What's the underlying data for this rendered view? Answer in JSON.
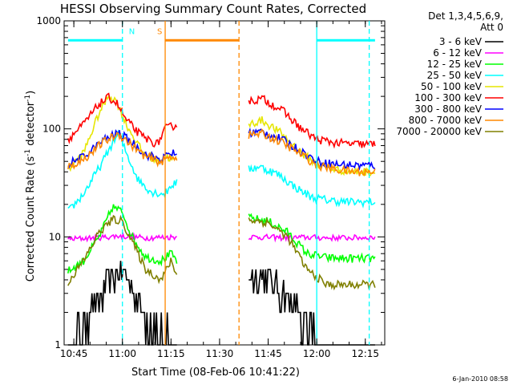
{
  "chart_data": {
    "type": "line",
    "title": "HESSI Observing Summary Count Rates, Corrected",
    "xlabel": "Start Time (08-Feb-06 10:41:22)",
    "ylabel_main": "Corrected Count Rate (s",
    "ylabel_sup1": "-1",
    "ylabel_mid": " detector",
    "ylabel_sup2": "-1",
    "ylabel_end": ")",
    "ylabel": "Corrected Count Rate (s-1 detector-1)",
    "yscale": "log",
    "ylim": [
      1,
      1000
    ],
    "xlim_minutes": [
      10.7,
      12.35
    ],
    "x_ticks": [
      {
        "value": 10.75,
        "label": "10:45"
      },
      {
        "value": 11.0,
        "label": "11:00"
      },
      {
        "value": 11.25,
        "label": "11:15"
      },
      {
        "value": 11.5,
        "label": "11:30"
      },
      {
        "value": 11.75,
        "label": "11:45"
      },
      {
        "value": 12.0,
        "label": "12:00"
      },
      {
        "value": 12.25,
        "label": "12:15"
      }
    ],
    "y_ticks": [
      {
        "value": 1,
        "label": "1"
      },
      {
        "value": 10,
        "label": "10"
      },
      {
        "value": 100,
        "label": "100"
      },
      {
        "value": 1000,
        "label": "1000"
      }
    ],
    "legend": {
      "placement": "right",
      "header1": "Det 1,3,4,5,6,9,",
      "header2": "Att 0"
    },
    "data_gap": [
      11.33,
      11.61
    ],
    "series": [
      {
        "name": "3 - 6 keV",
        "color": "#000000",
        "x": [
          10.72,
          10.8,
          10.88,
          10.95,
          11.0,
          11.05,
          11.12,
          11.2,
          11.28,
          11.65,
          11.75,
          11.85,
          11.95,
          12.05,
          12.15,
          12.3
        ],
        "y": [
          1,
          1.6,
          2.6,
          4.2,
          4.6,
          3.6,
          1.9,
          1.2,
          1,
          4.5,
          4.2,
          2.6,
          1.4,
          1,
          1,
          1
        ]
      },
      {
        "name": "6 - 12 keV",
        "color": "#ff00ff",
        "x": [
          10.72,
          10.8,
          10.9,
          10.98,
          11.05,
          11.12,
          11.2,
          11.28,
          11.65,
          11.75,
          11.85,
          11.95,
          12.05,
          12.15,
          12.3
        ],
        "y": [
          9.5,
          9.7,
          9.9,
          10.2,
          10,
          9.8,
          9.9,
          10,
          10,
          9.9,
          9.8,
          9.9,
          9.8,
          9.8,
          9.9
        ]
      },
      {
        "name": "12 - 25 keV",
        "color": "#00ff00",
        "x": [
          10.72,
          10.8,
          10.88,
          10.95,
          11.0,
          11.05,
          11.12,
          11.2,
          11.25,
          11.28,
          11.65,
          11.75,
          11.85,
          11.95,
          12.05,
          12.15,
          12.3
        ],
        "y": [
          4.8,
          6,
          10,
          19,
          17,
          10,
          6.5,
          6,
          7,
          6,
          15,
          14,
          11,
          7,
          6.4,
          6.3,
          6.3
        ]
      },
      {
        "name": "25 - 50 keV",
        "color": "#00ffff",
        "x": [
          10.72,
          10.8,
          10.9,
          10.95,
          10.98,
          11.02,
          11.08,
          11.15,
          11.22,
          11.25,
          11.28,
          11.65,
          11.7,
          11.8,
          11.9,
          11.98,
          12.05,
          12.15,
          12.3
        ],
        "y": [
          17,
          25,
          50,
          75,
          90,
          60,
          34,
          26,
          25,
          30,
          32,
          42,
          45,
          38,
          28,
          23,
          22,
          21,
          21
        ]
      },
      {
        "name": "50 - 100 keV",
        "color": "#e6e600",
        "x": [
          10.72,
          10.8,
          10.88,
          10.93,
          10.97,
          11.02,
          11.1,
          11.18,
          11.23,
          11.28,
          11.65,
          11.72,
          11.82,
          11.92,
          12.0,
          12.1,
          12.2,
          12.3
        ],
        "y": [
          42,
          60,
          140,
          205,
          180,
          110,
          62,
          50,
          55,
          50,
          110,
          120,
          90,
          60,
          47,
          42,
          40,
          40
        ]
      },
      {
        "name": "100 - 300 keV",
        "color": "#ff0000",
        "x": [
          10.72,
          10.8,
          10.88,
          10.93,
          10.97,
          11.02,
          11.1,
          11.18,
          11.22,
          11.28,
          11.65,
          11.72,
          11.82,
          11.92,
          12.0,
          12.1,
          12.2,
          12.3
        ],
        "y": [
          80,
          110,
          170,
          195,
          175,
          120,
          85,
          72,
          100,
          110,
          180,
          190,
          150,
          100,
          80,
          74,
          72,
          72
        ]
      },
      {
        "name": "300 - 800 keV",
        "color": "#0000ff",
        "x": [
          10.72,
          10.8,
          10.9,
          10.98,
          11.05,
          11.12,
          11.2,
          11.25,
          11.28,
          11.65,
          11.72,
          11.82,
          11.92,
          12.0,
          12.1,
          12.2,
          12.3
        ],
        "y": [
          47,
          55,
          78,
          92,
          75,
          58,
          52,
          60,
          58,
          92,
          94,
          80,
          62,
          50,
          47,
          46,
          46
        ]
      },
      {
        "name": "800 - 7000 keV",
        "color": "#ff8800",
        "x": [
          10.72,
          10.8,
          10.9,
          10.98,
          11.05,
          11.12,
          11.2,
          11.25,
          11.28,
          11.65,
          11.72,
          11.82,
          11.92,
          12.0,
          12.1,
          12.2,
          12.3
        ],
        "y": [
          44,
          52,
          75,
          90,
          70,
          55,
          49,
          56,
          54,
          88,
          90,
          75,
          58,
          46,
          42,
          40,
          40
        ]
      },
      {
        "name": "7000 - 20000 keV",
        "color": "#808000",
        "x": [
          10.72,
          10.8,
          10.88,
          10.95,
          11.0,
          11.05,
          11.12,
          11.2,
          11.25,
          11.28,
          11.65,
          11.75,
          11.85,
          11.95,
          12.05,
          12.15,
          12.3
        ],
        "y": [
          3.8,
          6,
          11,
          14.5,
          14,
          9,
          5,
          4,
          6,
          4.5,
          14.5,
          13.5,
          10,
          5,
          3.6,
          3.6,
          3.6
        ]
      }
    ],
    "markers": {
      "N": {
        "label": "N",
        "color": "#00ffff",
        "bars": [
          [
            10.72,
            11.0
          ],
          [
            12.0,
            12.3
          ]
        ],
        "bar_y": 660,
        "vlines_dashed": [
          11.0,
          12.27
        ],
        "vlines_solid": [
          12.0
        ]
      },
      "S": {
        "label": "S",
        "color": "#ff8800",
        "bars": [
          [
            11.22,
            11.6
          ]
        ],
        "bar_y": 660,
        "vlines_dashed": [
          11.6
        ],
        "vlines_solid": [
          11.22
        ]
      }
    }
  },
  "footer": {
    "timestamp": "6-Jan-2010 08:58"
  }
}
